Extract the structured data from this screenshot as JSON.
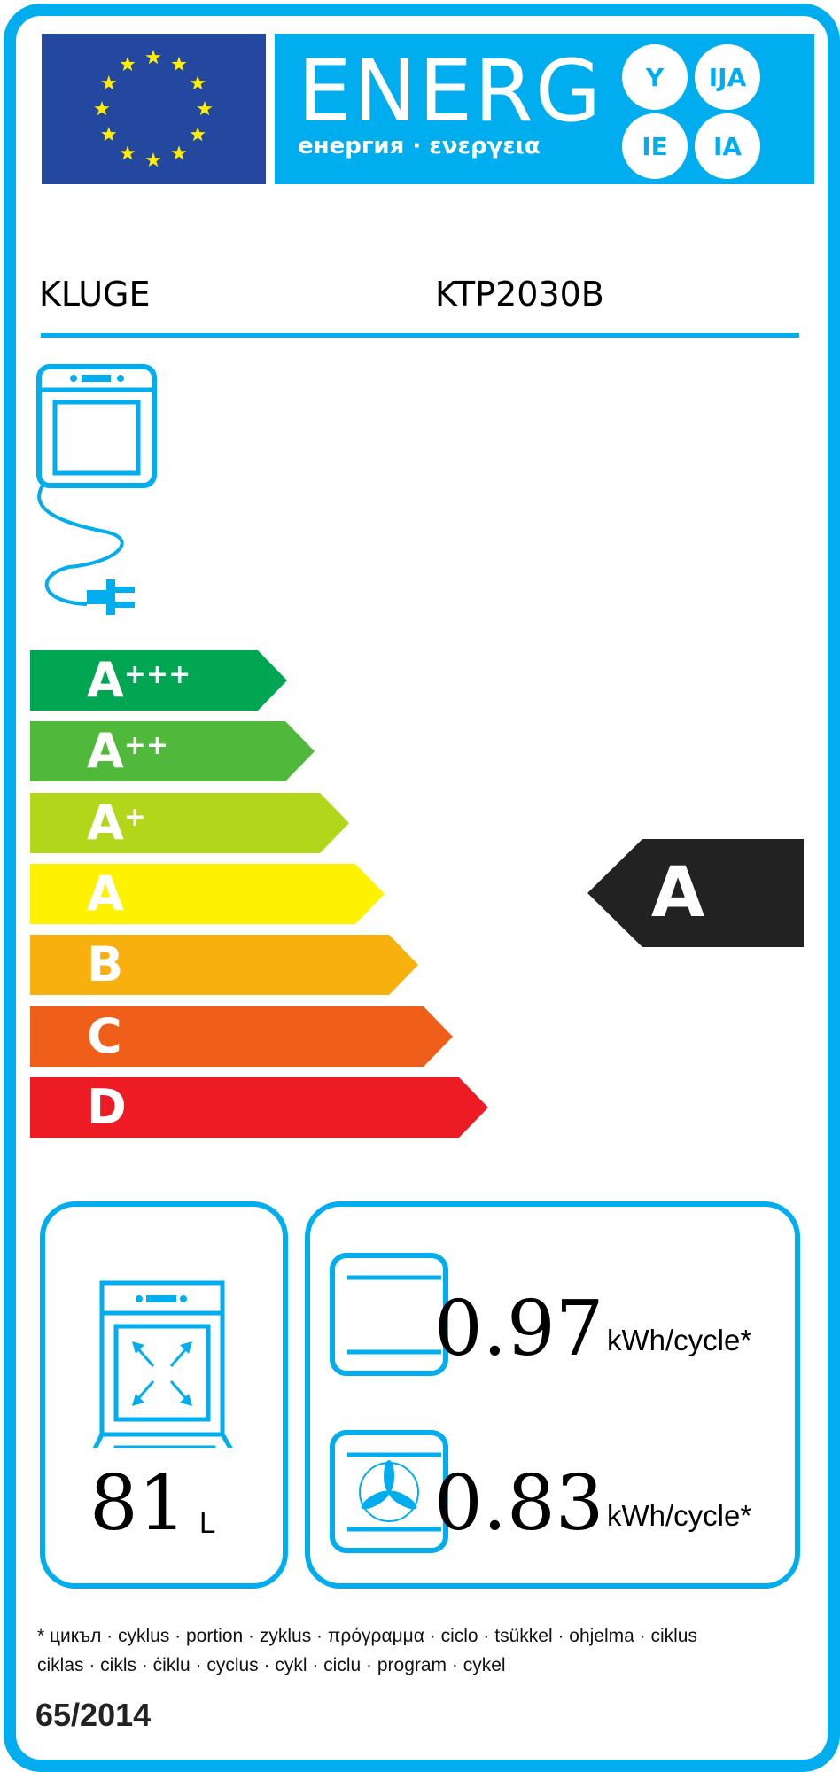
{
  "header": {
    "title": "ENERG",
    "subtitle": "енергия · ενεργεια",
    "suffixes": [
      "Y",
      "IJA",
      "IE",
      "IA"
    ]
  },
  "supplier": "KLUGE",
  "model": "KTP2030B",
  "scale": [
    {
      "main": "A",
      "plus": "+++",
      "color": "#00a651"
    },
    {
      "main": "A",
      "plus": "++",
      "color": "#50b83a"
    },
    {
      "main": "A",
      "plus": "+",
      "color": "#b2d61a"
    },
    {
      "main": "A",
      "plus": "",
      "color": "#fff200"
    },
    {
      "main": "B",
      "plus": "",
      "color": "#f7b00e"
    },
    {
      "main": "C",
      "plus": "",
      "color": "#f05f1a"
    },
    {
      "main": "D",
      "plus": "",
      "color": "#ec1b24"
    }
  ],
  "rating": {
    "label": "A",
    "color": "#222222"
  },
  "volume": {
    "value": "81",
    "unit": "L"
  },
  "conventional": {
    "value": "0.97",
    "unit": "kWh/cycle*"
  },
  "fan_forced": {
    "value": "0.83",
    "unit": "kWh/cycle*"
  },
  "footnote": {
    "line1": "* цикъл · cyklus · portion · zyklus · πρόγραμμα · ciclo · tsükkel · ohjelma · ciklus",
    "line2": "ciklas · cikls · ċiklu · cyclus · cykl · ciclu · program · cykel"
  },
  "regulation": "65/2014",
  "colors": {
    "brand_blue": "#00aeef",
    "eu_blue": "#2447a0",
    "eu_star": "#ffed00"
  }
}
